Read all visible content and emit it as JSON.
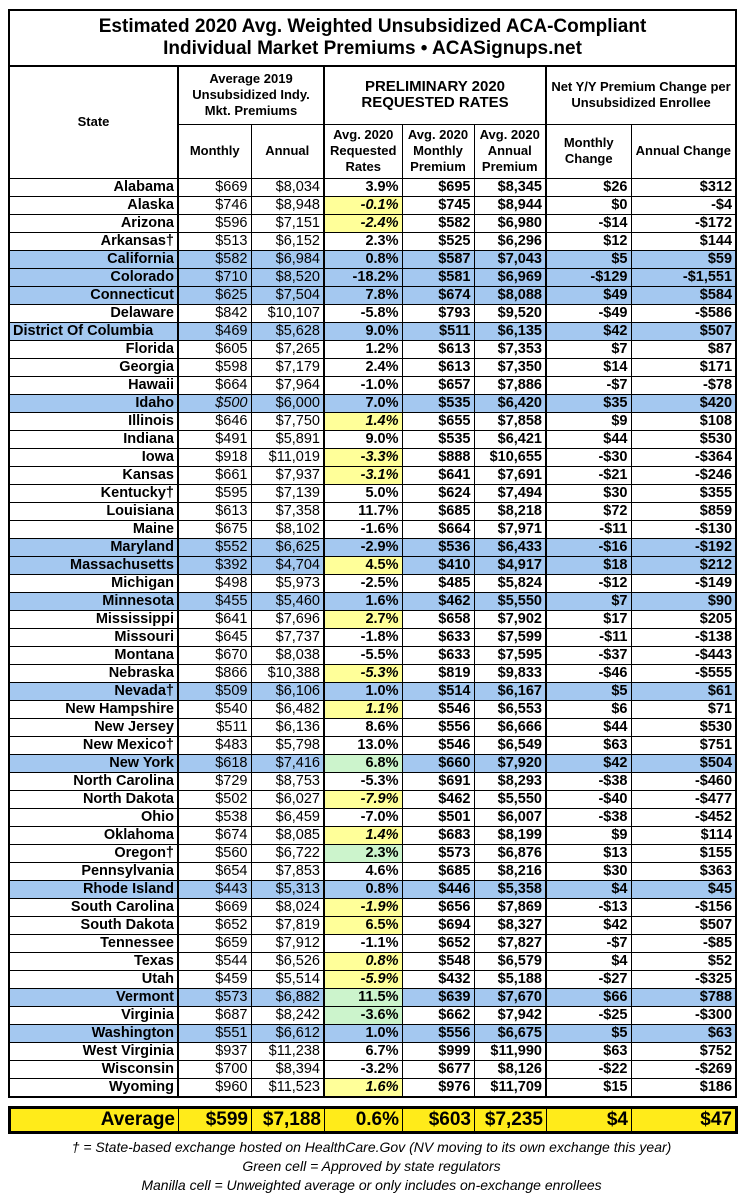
{
  "title_line1": "Estimated 2020 Avg. Weighted Unsubsidized ACA-Compliant",
  "title_line2": "Individual Market Premiums • ACASignups.net",
  "headers": {
    "state": "State",
    "group2019": "Average 2019 Unsubsidized Indy. Mkt. Premiums",
    "group2020": "PRELIMINARY 2020 REQUESTED RATES",
    "groupChange": "Net Y/Y Premium Change per Unsubsidized Enrollee",
    "monthly": "Monthly",
    "annual": "Annual",
    "rate": "Avg. 2020 Requested Rates",
    "m2020": "Avg. 2020 Monthly Premium",
    "a2020": "Avg. 2020 Annual Premium",
    "mchg": "Monthly Change",
    "achg": "Annual Change"
  },
  "colors": {
    "blue": "#a4c8f0",
    "yellow": "#ffff99",
    "green": "#ccf4cc",
    "average": "#ffeb1a"
  },
  "rows": [
    [
      "Alabama",
      "$669",
      "$8,034",
      "3.9%",
      "$695",
      "$8,345",
      "$26",
      "$312",
      "",
      ""
    ],
    [
      "Alaska",
      "$746",
      "$8,948",
      "-0.1%",
      "$745",
      "$8,944",
      "$0",
      "-$4",
      "",
      "yellow"
    ],
    [
      "Arizona",
      "$596",
      "$7,151",
      "-2.4%",
      "$582",
      "$6,980",
      "-$14",
      "-$172",
      "",
      "yellow"
    ],
    [
      "Arkansas†",
      "$513",
      "$6,152",
      "2.3%",
      "$525",
      "$6,296",
      "$12",
      "$144",
      "",
      ""
    ],
    [
      "California",
      "$582",
      "$6,984",
      "0.8%",
      "$587",
      "$7,043",
      "$5",
      "$59",
      "blue",
      ""
    ],
    [
      "Colorado",
      "$710",
      "$8,520",
      "-18.2%",
      "$581",
      "$6,969",
      "-$129",
      "-$1,551",
      "blue",
      ""
    ],
    [
      "Connecticut",
      "$625",
      "$7,504",
      "7.8%",
      "$674",
      "$8,088",
      "$49",
      "$584",
      "blue",
      ""
    ],
    [
      "Delaware",
      "$842",
      "$10,107",
      "-5.8%",
      "$793",
      "$9,520",
      "-$49",
      "-$586",
      "",
      ""
    ],
    [
      "District Of Columbia",
      "$469",
      "$5,628",
      "9.0%",
      "$511",
      "$6,135",
      "$42",
      "$507",
      "blue",
      ""
    ],
    [
      "Florida",
      "$605",
      "$7,265",
      "1.2%",
      "$613",
      "$7,353",
      "$7",
      "$87",
      "",
      ""
    ],
    [
      "Georgia",
      "$598",
      "$7,179",
      "2.4%",
      "$613",
      "$7,350",
      "$14",
      "$171",
      "",
      ""
    ],
    [
      "Hawaii",
      "$664",
      "$7,964",
      "-1.0%",
      "$657",
      "$7,886",
      "-$7",
      "-$78",
      "",
      ""
    ],
    [
      "Idaho",
      "$500",
      "$6,000",
      "7.0%",
      "$535",
      "$6,420",
      "$35",
      "$420",
      "blue",
      ""
    ],
    [
      "Illinois",
      "$646",
      "$7,750",
      "1.4%",
      "$655",
      "$7,858",
      "$9",
      "$108",
      "",
      "yellow"
    ],
    [
      "Indiana",
      "$491",
      "$5,891",
      "9.0%",
      "$535",
      "$6,421",
      "$44",
      "$530",
      "",
      ""
    ],
    [
      "Iowa",
      "$918",
      "$11,019",
      "-3.3%",
      "$888",
      "$10,655",
      "-$30",
      "-$364",
      "",
      "yellow"
    ],
    [
      "Kansas",
      "$661",
      "$7,937",
      "-3.1%",
      "$641",
      "$7,691",
      "-$21",
      "-$246",
      "",
      "yellow"
    ],
    [
      "Kentucky†",
      "$595",
      "$7,139",
      "5.0%",
      "$624",
      "$7,494",
      "$30",
      "$355",
      "",
      ""
    ],
    [
      "Louisiana",
      "$613",
      "$7,358",
      "11.7%",
      "$685",
      "$8,218",
      "$72",
      "$859",
      "",
      ""
    ],
    [
      "Maine",
      "$675",
      "$8,102",
      "-1.6%",
      "$664",
      "$7,971",
      "-$11",
      "-$130",
      "",
      ""
    ],
    [
      "Maryland",
      "$552",
      "$6,625",
      "-2.9%",
      "$536",
      "$6,433",
      "-$16",
      "-$192",
      "blue",
      ""
    ],
    [
      "Massachusetts",
      "$392",
      "$4,704",
      "4.5%",
      "$410",
      "$4,917",
      "$18",
      "$212",
      "blue",
      "yellow"
    ],
    [
      "Michigan",
      "$498",
      "$5,973",
      "-2.5%",
      "$485",
      "$5,824",
      "-$12",
      "-$149",
      "",
      ""
    ],
    [
      "Minnesota",
      "$455",
      "$5,460",
      "1.6%",
      "$462",
      "$5,550",
      "$7",
      "$90",
      "blue",
      ""
    ],
    [
      "Mississippi",
      "$641",
      "$7,696",
      "2.7%",
      "$658",
      "$7,902",
      "$17",
      "$205",
      "",
      "yellow"
    ],
    [
      "Missouri",
      "$645",
      "$7,737",
      "-1.8%",
      "$633",
      "$7,599",
      "-$11",
      "-$138",
      "",
      ""
    ],
    [
      "Montana",
      "$670",
      "$8,038",
      "-5.5%",
      "$633",
      "$7,595",
      "-$37",
      "-$443",
      "",
      ""
    ],
    [
      "Nebraska",
      "$866",
      "$10,388",
      "-5.3%",
      "$819",
      "$9,833",
      "-$46",
      "-$555",
      "",
      "yellow"
    ],
    [
      "Nevada†",
      "$509",
      "$6,106",
      "1.0%",
      "$514",
      "$6,167",
      "$5",
      "$61",
      "blue",
      ""
    ],
    [
      "New Hampshire",
      "$540",
      "$6,482",
      "1.1%",
      "$546",
      "$6,553",
      "$6",
      "$71",
      "",
      "yellow"
    ],
    [
      "New Jersey",
      "$511",
      "$6,136",
      "8.6%",
      "$556",
      "$6,666",
      "$44",
      "$530",
      "",
      ""
    ],
    [
      "New Mexico†",
      "$483",
      "$5,798",
      "13.0%",
      "$546",
      "$6,549",
      "$63",
      "$751",
      "",
      ""
    ],
    [
      "New York",
      "$618",
      "$7,416",
      "6.8%",
      "$660",
      "$7,920",
      "$42",
      "$504",
      "blue",
      "green"
    ],
    [
      "North Carolina",
      "$729",
      "$8,753",
      "-5.3%",
      "$691",
      "$8,293",
      "-$38",
      "-$460",
      "",
      ""
    ],
    [
      "North Dakota",
      "$502",
      "$6,027",
      "-7.9%",
      "$462",
      "$5,550",
      "-$40",
      "-$477",
      "",
      "yellow"
    ],
    [
      "Ohio",
      "$538",
      "$6,459",
      "-7.0%",
      "$501",
      "$6,007",
      "-$38",
      "-$452",
      "",
      ""
    ],
    [
      "Oklahoma",
      "$674",
      "$8,085",
      "1.4%",
      "$683",
      "$8,199",
      "$9",
      "$114",
      "",
      "yellow"
    ],
    [
      "Oregon†",
      "$560",
      "$6,722",
      "2.3%",
      "$573",
      "$6,876",
      "$13",
      "$155",
      "",
      "green"
    ],
    [
      "Pennsylvania",
      "$654",
      "$7,853",
      "4.6%",
      "$685",
      "$8,216",
      "$30",
      "$363",
      "",
      ""
    ],
    [
      "Rhode Island",
      "$443",
      "$5,313",
      "0.8%",
      "$446",
      "$5,358",
      "$4",
      "$45",
      "blue",
      ""
    ],
    [
      "South Carolina",
      "$669",
      "$8,024",
      "-1.9%",
      "$656",
      "$7,869",
      "-$13",
      "-$156",
      "",
      "yellow"
    ],
    [
      "South Dakota",
      "$652",
      "$7,819",
      "6.5%",
      "$694",
      "$8,327",
      "$42",
      "$507",
      "",
      "yellow"
    ],
    [
      "Tennessee",
      "$659",
      "$7,912",
      "-1.1%",
      "$652",
      "$7,827",
      "-$7",
      "-$85",
      "",
      ""
    ],
    [
      "Texas",
      "$544",
      "$6,526",
      "0.8%",
      "$548",
      "$6,579",
      "$4",
      "$52",
      "",
      "yellow"
    ],
    [
      "Utah",
      "$459",
      "$5,514",
      "-5.9%",
      "$432",
      "$5,188",
      "-$27",
      "-$325",
      "",
      "yellow"
    ],
    [
      "Vermont",
      "$573",
      "$6,882",
      "11.5%",
      "$639",
      "$7,670",
      "$66",
      "$788",
      "blue",
      "green"
    ],
    [
      "Virginia",
      "$687",
      "$8,242",
      "-3.6%",
      "$662",
      "$7,942",
      "-$25",
      "-$300",
      "",
      "green"
    ],
    [
      "Washington",
      "$551",
      "$6,612",
      "1.0%",
      "$556",
      "$6,675",
      "$5",
      "$63",
      "blue",
      ""
    ],
    [
      "West Virginia",
      "$937",
      "$11,238",
      "6.7%",
      "$999",
      "$11,990",
      "$63",
      "$752",
      "",
      ""
    ],
    [
      "Wisconsin",
      "$700",
      "$8,394",
      "-3.2%",
      "$677",
      "$8,126",
      "-$22",
      "-$269",
      "",
      ""
    ],
    [
      "Wyoming",
      "$960",
      "$11,523",
      "1.6%",
      "$976",
      "$11,709",
      "$15",
      "$186",
      "",
      "yellow"
    ]
  ],
  "average": [
    "Average",
    "$599",
    "$7,188",
    "0.6%",
    "$603",
    "$7,235",
    "$4",
    "$47"
  ],
  "notes": [
    "† = State-based exchange hosted on HealthCare.Gov (NV moving to its own exchange this year)",
    "Green cell = Approved by state regulators",
    "Manilla cell = Unweighted average or only includes on-exchange enrollees"
  ]
}
